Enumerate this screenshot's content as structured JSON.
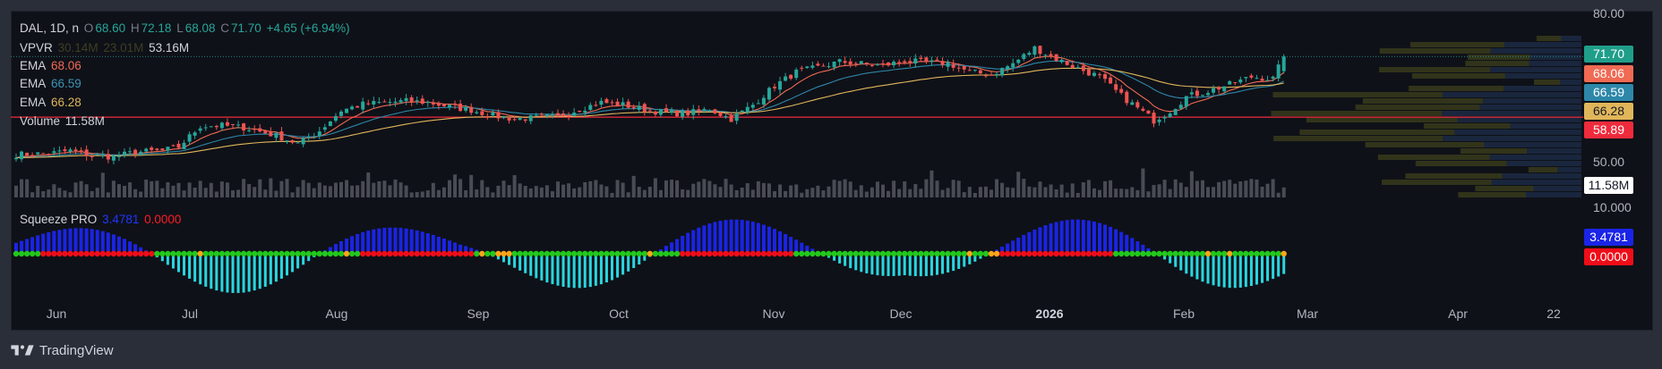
{
  "header": {
    "symbol": "DAL, 1D, n",
    "o_label": "O",
    "o": "68.60",
    "h_label": "H",
    "h": "72.18",
    "l_label": "L",
    "l": "68.08",
    "c_label": "C",
    "c": "71.70",
    "change": "+4.65 (+6.94%)"
  },
  "indicators": {
    "vpvr": {
      "label": "VPVR",
      "v1": "30.14M",
      "v2": "23.01M",
      "v3": "53.16M"
    },
    "ema1": {
      "label": "EMA",
      "value": "68.06",
      "color": "#f06a54"
    },
    "ema2": {
      "label": "EMA",
      "value": "66.59",
      "color": "#2d87a8"
    },
    "ema3": {
      "label": "EMA",
      "value": "66.28",
      "color": "#e0b65a"
    },
    "volume": {
      "label": "Volume",
      "value": "11.58M"
    },
    "squeeze": {
      "label": "Squeeze PRO",
      "v1": "3.4781",
      "v2": "0.0000"
    }
  },
  "price_axis": {
    "labels": [
      "80.00",
      "50.00"
    ],
    "volume_label": "10.000",
    "tags": [
      {
        "text": "71.70",
        "color": "#1f9e8a"
      },
      {
        "text": "68.06",
        "color": "#f06a54"
      },
      {
        "text": "66.59",
        "color": "#2d87a8"
      },
      {
        "text": "66.28",
        "color": "#e0b65a"
      },
      {
        "text": "58.89",
        "color": "#ef2b3c"
      },
      {
        "text": "11.58M",
        "color": "#ffffff"
      }
    ],
    "squeeze_tags": [
      {
        "text": "3.4781",
        "color": "#1a24e6"
      },
      {
        "text": "0.0000",
        "color": "#ef0d18"
      }
    ]
  },
  "time_axis": {
    "labels": [
      "Jun",
      "Jul",
      "Aug",
      "Sep",
      "Oct",
      "Nov",
      "Dec",
      "2026",
      "Feb",
      "Mar",
      "Apr",
      "22"
    ]
  },
  "branding": {
    "name": "TradingView"
  },
  "chart_data": {
    "type": "candlestick",
    "symbol": "DAL",
    "interval": "1D",
    "ylim": [
      44,
      81
    ],
    "horizontal_line": 58.89,
    "month_starts": [
      {
        "label": "Jun",
        "index": 12
      },
      {
        "label": "Jul",
        "index": 33
      },
      {
        "label": "Aug",
        "index": 56
      },
      {
        "label": "Sep",
        "index": 77
      },
      {
        "label": "Oct",
        "index": 98
      },
      {
        "label": "Nov",
        "index": 120
      },
      {
        "label": "Dec",
        "index": 140
      },
      {
        "label": "2026",
        "index": 161
      },
      {
        "label": "Feb",
        "index": 182
      },
      {
        "label": "Mar",
        "index": 201
      },
      {
        "label": "Apr",
        "index": 223
      },
      {
        "label": "22",
        "index": 238
      }
    ],
    "anchors": [
      [
        0,
        51.0
      ],
      [
        6,
        51.2
      ],
      [
        10,
        51.8
      ],
      [
        14,
        50.8
      ],
      [
        18,
        50.5
      ],
      [
        22,
        51.5
      ],
      [
        27,
        51.8
      ],
      [
        30,
        52.6
      ],
      [
        34,
        57.0
      ],
      [
        38,
        57.1
      ],
      [
        42,
        56.7
      ],
      [
        48,
        55.0
      ],
      [
        52,
        53.3
      ],
      [
        56,
        56.0
      ],
      [
        60,
        60.3
      ],
      [
        64,
        61.6
      ],
      [
        68,
        62.0
      ],
      [
        72,
        62.3
      ],
      [
        76,
        62.0
      ],
      [
        80,
        61.1
      ],
      [
        84,
        60.4
      ],
      [
        88,
        59.2
      ],
      [
        92,
        58.5
      ],
      [
        96,
        58.8
      ],
      [
        100,
        59.0
      ],
      [
        104,
        60.6
      ],
      [
        108,
        62.0
      ],
      [
        112,
        61.5
      ],
      [
        116,
        60.5
      ],
      [
        120,
        59.8
      ],
      [
        124,
        59.7
      ],
      [
        128,
        60.6
      ],
      [
        132,
        58.5
      ],
      [
        136,
        61.5
      ],
      [
        140,
        65.5
      ],
      [
        144,
        68.4
      ],
      [
        148,
        69.4
      ],
      [
        152,
        70.6
      ],
      [
        156,
        70.2
      ],
      [
        160,
        69.8
      ],
      [
        164,
        70.8
      ],
      [
        168,
        70.4
      ],
      [
        172,
        70.3
      ],
      [
        176,
        68.4
      ],
      [
        180,
        67.9
      ],
      [
        184,
        70.2
      ],
      [
        188,
        73.5
      ],
      [
        192,
        71.2
      ],
      [
        196,
        69.2
      ],
      [
        200,
        67.4
      ],
      [
        204,
        63.4
      ],
      [
        207,
        60.8
      ],
      [
        210,
        58.2
      ],
      [
        213,
        60.2
      ],
      [
        216,
        63.2
      ],
      [
        220,
        64.4
      ],
      [
        224,
        65.8
      ],
      [
        228,
        67.4
      ],
      [
        232,
        67.0
      ],
      [
        234,
        71.7
      ]
    ],
    "ema_fast_last": 68.06,
    "ema_mid_last": 66.59,
    "ema_slow_last": 66.28,
    "last": {
      "open": 68.6,
      "high": 72.18,
      "low": 68.08,
      "close": 71.7
    },
    "volume_last": "11.58M",
    "squeeze_momentum_last": 3.4781,
    "squeeze_signal_last": 0.0
  }
}
